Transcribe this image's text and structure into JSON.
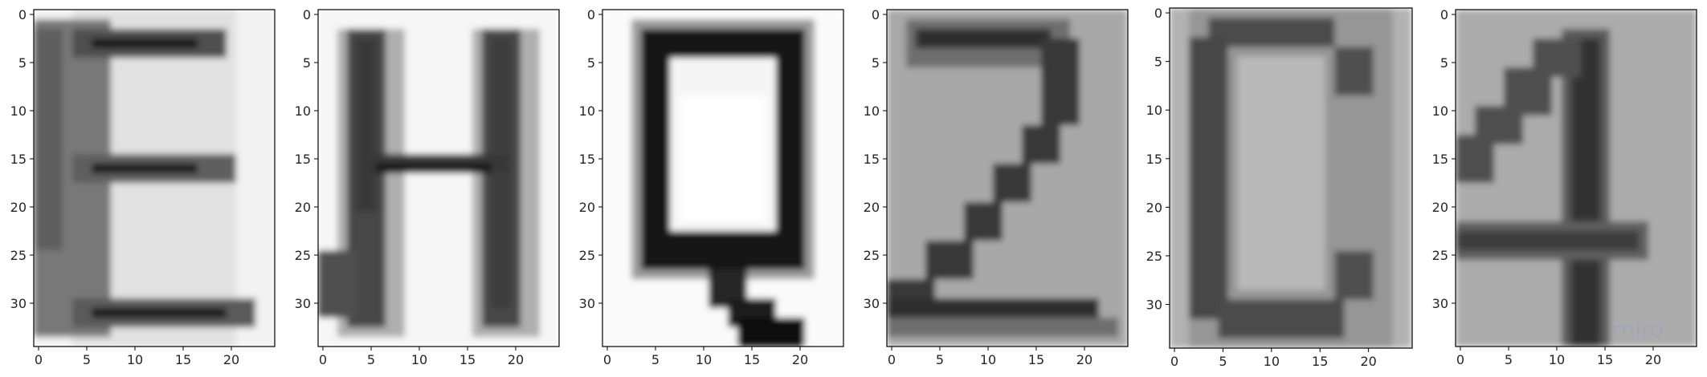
{
  "figure": {
    "background": "#ffffff",
    "watermark_text": "miro"
  },
  "chart_data": [
    {
      "type": "heatmap",
      "colormap": "gray",
      "glyph": "E",
      "x_ticks": [
        0,
        5,
        10,
        15,
        20
      ],
      "y_ticks": [
        0,
        5,
        10,
        15,
        20,
        25,
        30
      ],
      "x_range": [
        -0.5,
        24.5
      ],
      "y_range": [
        -0.5,
        34.5
      ],
      "background_gray": 242,
      "strokes": [
        {
          "x": [
            3.5,
            20.5
          ],
          "y": [
            -0.5,
            34.5
          ],
          "gray": 225
        },
        {
          "x": [
            -0.5,
            7.5
          ],
          "y": [
            0.5,
            33.5
          ],
          "gray": 120
        },
        {
          "x": [
            -0.5,
            2.5
          ],
          "y": [
            1.5,
            24.5
          ],
          "gray": 95
        },
        {
          "x": [
            3.5,
            19.5
          ],
          "y": [
            1.5,
            4.5
          ],
          "gray": 80
        },
        {
          "x": [
            5.5,
            16.5
          ],
          "y": [
            2.5,
            3.5
          ],
          "gray": 25
        },
        {
          "x": [
            3.5,
            20.5
          ],
          "y": [
            14.5,
            17.5
          ],
          "gray": 95
        },
        {
          "x": [
            5.5,
            16.5
          ],
          "y": [
            15.5,
            16.5
          ],
          "gray": 20
        },
        {
          "x": [
            3.5,
            22.5
          ],
          "y": [
            29.5,
            32.5
          ],
          "gray": 90
        },
        {
          "x": [
            5.5,
            19.5
          ],
          "y": [
            30.5,
            31.5
          ],
          "gray": 25
        }
      ]
    },
    {
      "type": "heatmap",
      "colormap": "gray",
      "glyph": "H",
      "x_ticks": [
        0,
        5,
        10,
        15,
        20
      ],
      "y_ticks": [
        0,
        5,
        10,
        15,
        20,
        25,
        30
      ],
      "x_range": [
        -0.5,
        24.5
      ],
      "y_range": [
        -0.5,
        34.5
      ],
      "background_gray": 246,
      "strokes": [
        {
          "x": [
            1.5,
            8.5
          ],
          "y": [
            1.5,
            33.5
          ],
          "gray": 175
        },
        {
          "x": [
            15.5,
            22.5
          ],
          "y": [
            1.5,
            33.5
          ],
          "gray": 175
        },
        {
          "x": [
            2.5,
            6.5
          ],
          "y": [
            1.5,
            32.5
          ],
          "gray": 70
        },
        {
          "x": [
            3.5,
            5.5
          ],
          "y": [
            2.5,
            20.5
          ],
          "gray": 55
        },
        {
          "x": [
            -0.5,
            3.5
          ],
          "y": [
            24.5,
            31.5
          ],
          "gray": 80
        },
        {
          "x": [
            16.5,
            20.5
          ],
          "y": [
            1.5,
            32.5
          ],
          "gray": 70
        },
        {
          "x": [
            17.5,
            19.5
          ],
          "y": [
            2.5,
            30.5
          ],
          "gray": 60
        },
        {
          "x": [
            4.5,
            19.5
          ],
          "y": [
            14.5,
            16.5
          ],
          "gray": 55
        },
        {
          "x": [
            5.5,
            17.5
          ],
          "y": [
            15.5,
            16.5
          ],
          "gray": 25
        }
      ]
    },
    {
      "type": "heatmap",
      "colormap": "gray",
      "glyph": "Q",
      "x_ticks": [
        0,
        5,
        10,
        15,
        20
      ],
      "y_ticks": [
        0,
        5,
        10,
        15,
        20,
        25,
        30
      ],
      "x_range": [
        -0.5,
        24.5
      ],
      "y_range": [
        -0.5,
        34.5
      ],
      "background_gray": 250,
      "strokes": [
        {
          "x": [
            2.5,
            21.5
          ],
          "y": [
            0.5,
            27.5
          ],
          "gray": 155
        },
        {
          "x": [
            3.5,
            20.5
          ],
          "y": [
            1.5,
            26.5
          ],
          "gray": 25
        },
        {
          "x": [
            6.5,
            17.5
          ],
          "y": [
            4.5,
            22.5
          ],
          "gray": 245
        },
        {
          "x": [
            7.5,
            16.5
          ],
          "y": [
            8.5,
            21.5
          ],
          "gray": 255
        },
        {
          "x": [
            10.5,
            14.5
          ],
          "y": [
            26.5,
            30.5
          ],
          "gray": 40
        },
        {
          "x": [
            12.5,
            17.5
          ],
          "y": [
            29.5,
            32.5
          ],
          "gray": 30
        },
        {
          "x": [
            13.5,
            20.5
          ],
          "y": [
            31.5,
            34.5
          ],
          "gray": 15
        }
      ]
    },
    {
      "type": "heatmap",
      "colormap": "gray",
      "glyph": "2",
      "x_ticks": [
        0,
        5,
        10,
        15,
        20
      ],
      "y_ticks": [
        0,
        5,
        10,
        15,
        20,
        25,
        30
      ],
      "x_range": [
        -0.5,
        24.5
      ],
      "y_range": [
        -0.5,
        34.5
      ],
      "background_gray": 168,
      "strokes": [
        {
          "x": [
            1.5,
            18.5
          ],
          "y": [
            0.5,
            5.5
          ],
          "gray": 110
        },
        {
          "x": [
            2.5,
            16.5
          ],
          "y": [
            1.5,
            3.5
          ],
          "gray": 45
        },
        {
          "x": [
            15.5,
            19.5
          ],
          "y": [
            2.5,
            11.5
          ],
          "gray": 55
        },
        {
          "x": [
            13.5,
            17.5
          ],
          "y": [
            11.5,
            15.5
          ],
          "gray": 55
        },
        {
          "x": [
            10.5,
            14.5
          ],
          "y": [
            15.5,
            19.5
          ],
          "gray": 55
        },
        {
          "x": [
            7.5,
            11.5
          ],
          "y": [
            19.5,
            23.5
          ],
          "gray": 55
        },
        {
          "x": [
            3.5,
            8.5
          ],
          "y": [
            23.5,
            27.5
          ],
          "gray": 55
        },
        {
          "x": [
            -0.5,
            4.5
          ],
          "y": [
            27.5,
            31.5
          ],
          "gray": 55
        },
        {
          "x": [
            -0.5,
            21.5
          ],
          "y": [
            29.5,
            31.5
          ],
          "gray": 45
        },
        {
          "x": [
            -0.5,
            23.5
          ],
          "y": [
            31.5,
            33.5
          ],
          "gray": 110
        }
      ]
    },
    {
      "type": "heatmap",
      "colormap": "gray",
      "glyph": "C",
      "x_ticks": [
        0,
        5,
        10,
        15,
        20
      ],
      "y_ticks": [
        0,
        5,
        10,
        15,
        20,
        25,
        30
      ],
      "x_range": [
        -0.5,
        24.5
      ],
      "y_range": [
        -0.5,
        34.5
      ],
      "background_gray": 178,
      "strokes": [
        {
          "x": [
            1.5,
            22.5
          ],
          "y": [
            -0.5,
            34.5
          ],
          "gray": 150
        },
        {
          "x": [
            3.5,
            16.5
          ],
          "y": [
            0.5,
            3.5
          ],
          "gray": 75
        },
        {
          "x": [
            1.5,
            5.5
          ],
          "y": [
            2.5,
            31.5
          ],
          "gray": 70
        },
        {
          "x": [
            16.5,
            20.5
          ],
          "y": [
            3.5,
            8.5
          ],
          "gray": 80
        },
        {
          "x": [
            16.5,
            20.5
          ],
          "y": [
            24.5,
            29.5
          ],
          "gray": 80
        },
        {
          "x": [
            4.5,
            17.5
          ],
          "y": [
            29.5,
            33.5
          ],
          "gray": 75
        },
        {
          "x": [
            6.5,
            15.5
          ],
          "y": [
            4.5,
            28.5
          ],
          "gray": 185
        }
      ]
    },
    {
      "type": "heatmap",
      "colormap": "gray",
      "glyph": "4",
      "x_ticks": [
        0,
        5,
        10,
        15,
        20
      ],
      "y_ticks": [
        0,
        5,
        10,
        15,
        20,
        25,
        30
      ],
      "x_range": [
        -0.5,
        24.5
      ],
      "y_range": [
        -0.5,
        34.5
      ],
      "background_gray": 172,
      "strokes": [
        {
          "x": [
            10.5,
            15.5
          ],
          "y": [
            1.5,
            34.5
          ],
          "gray": 90
        },
        {
          "x": [
            11.5,
            14.5
          ],
          "y": [
            2.5,
            34.5
          ],
          "gray": 50
        },
        {
          "x": [
            7.5,
            12.5
          ],
          "y": [
            2.5,
            6.5
          ],
          "gray": 80
        },
        {
          "x": [
            4.5,
            9.5
          ],
          "y": [
            5.5,
            10.5
          ],
          "gray": 80
        },
        {
          "x": [
            1.5,
            6.5
          ],
          "y": [
            9.5,
            13.5
          ],
          "gray": 80
        },
        {
          "x": [
            -0.5,
            3.5
          ],
          "y": [
            12.5,
            17.5
          ],
          "gray": 80
        },
        {
          "x": [
            -0.5,
            19.5
          ],
          "y": [
            21.5,
            25.5
          ],
          "gray": 95
        },
        {
          "x": [
            -0.5,
            18.5
          ],
          "y": [
            22.5,
            24.5
          ],
          "gray": 60
        }
      ]
    }
  ]
}
